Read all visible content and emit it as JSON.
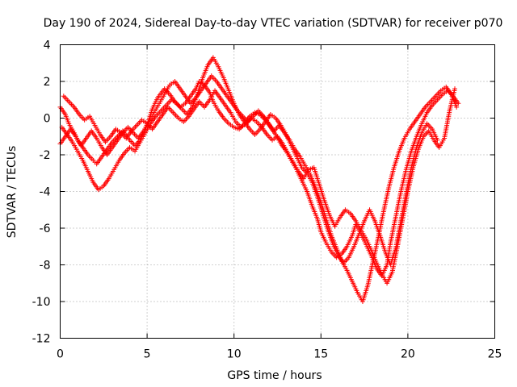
{
  "chart_data": {
    "type": "scatter",
    "title": "Day 190 of 2024, Sidereal Day-to-day VTEC variation (SDTVAR) for receiver p070",
    "xlabel": "GPS time / hours",
    "ylabel": "SDTVAR / TECUs",
    "xlim": [
      0,
      25
    ],
    "ylim": [
      -12,
      4
    ],
    "xticks": [
      0,
      5,
      10,
      15,
      20,
      25
    ],
    "yticks": [
      -12,
      -10,
      -8,
      -6,
      -4,
      -2,
      0,
      2,
      4
    ],
    "grid": true,
    "marker": "+",
    "color": "#ff0000",
    "series": [
      {
        "x": [
          0.0,
          0.3,
          0.5,
          0.8,
          1.0,
          1.3,
          1.6,
          1.9,
          2.1,
          2.4,
          2.7,
          3.0,
          3.3,
          3.6,
          4.0,
          4.3,
          4.6,
          4.9,
          5.1,
          5.3,
          5.6,
          6.0,
          6.3,
          6.6,
          6.9,
          7.2,
          7.5,
          7.8,
          8.0,
          8.3,
          8.6,
          8.8,
          9.1,
          9.4,
          9.7,
          10.0,
          10.3,
          10.6,
          10.9,
          11.2,
          11.5,
          11.8,
          12.1,
          12.4,
          12.7,
          13.0,
          13.3,
          13.6,
          13.9,
          14.2,
          14.5,
          14.8,
          15.0,
          15.3,
          15.6,
          15.9,
          16.2,
          16.5,
          16.8,
          17.0,
          17.3,
          17.6,
          17.9,
          18.2,
          18.5,
          18.8,
          19.0,
          19.3,
          19.6,
          19.9,
          20.2,
          20.5,
          20.8,
          21.1,
          21.4,
          21.7,
          22.0,
          22.3,
          22.6,
          22.9
        ],
        "y": [
          0.6,
          0.2,
          -0.3,
          -0.8,
          -1.2,
          -1.6,
          -2.0,
          -2.3,
          -2.5,
          -2.1,
          -1.7,
          -1.3,
          -1.0,
          -0.7,
          -1.2,
          -1.5,
          -1.2,
          -0.6,
          -0.1,
          0.5,
          1.1,
          1.6,
          1.3,
          0.9,
          0.6,
          0.8,
          1.2,
          1.6,
          2.0,
          1.8,
          1.4,
          0.9,
          0.4,
          0.0,
          -0.3,
          -0.5,
          -0.6,
          -0.3,
          0.1,
          0.3,
          0.2,
          -0.1,
          -0.5,
          -0.9,
          -1.4,
          -1.8,
          -2.3,
          -2.8,
          -3.4,
          -4.0,
          -4.8,
          -5.5,
          -6.2,
          -6.8,
          -7.3,
          -7.6,
          -7.4,
          -7.0,
          -6.4,
          -5.8,
          -6.3,
          -6.9,
          -7.5,
          -8.2,
          -8.6,
          -8.0,
          -6.8,
          -5.4,
          -4.0,
          -2.8,
          -1.8,
          -1.0,
          -0.3,
          0.3,
          0.7,
          1.0,
          1.3,
          1.5,
          1.2,
          0.8
        ]
      },
      {
        "x": [
          0.1,
          0.4,
          0.7,
          1.0,
          1.3,
          1.6,
          1.9,
          2.2,
          2.5,
          2.8,
          3.1,
          3.4,
          3.7,
          4.0,
          4.3,
          4.6,
          4.9,
          5.2,
          5.5,
          5.8,
          6.1,
          6.4,
          6.7,
          7.0,
          7.3,
          7.6,
          7.9,
          8.2,
          8.5,
          8.8,
          9.1,
          9.4,
          9.7,
          10.0,
          10.3,
          10.6,
          10.9,
          11.2,
          11.5,
          11.8,
          12.1,
          12.4,
          12.7,
          13.0,
          13.3,
          13.6,
          13.9,
          14.2,
          14.5,
          14.8,
          15.1,
          15.4,
          15.7,
          16.0,
          16.3,
          16.6,
          16.9,
          17.2,
          17.5,
          17.8,
          18.1,
          18.4,
          18.7,
          19.0,
          19.3,
          19.6,
          19.9,
          20.2,
          20.5,
          20.8,
          21.1,
          21.4,
          21.7
        ],
        "y": [
          -0.5,
          -0.9,
          -1.3,
          -1.8,
          -2.3,
          -2.9,
          -3.5,
          -3.9,
          -3.7,
          -3.3,
          -2.8,
          -2.3,
          -1.9,
          -1.6,
          -1.8,
          -1.3,
          -0.8,
          -0.3,
          0.1,
          0.4,
          0.7,
          1.0,
          0.8,
          0.5,
          0.2,
          0.6,
          1.3,
          2.2,
          2.9,
          3.3,
          2.8,
          2.2,
          1.5,
          0.8,
          0.2,
          -0.2,
          -0.6,
          -0.9,
          -0.6,
          -0.2,
          0.2,
          0.0,
          -0.4,
          -0.9,
          -1.5,
          -2.1,
          -2.7,
          -3.0,
          -3.5,
          -4.3,
          -5.2,
          -6.1,
          -6.9,
          -7.5,
          -7.9,
          -7.6,
          -7.0,
          -6.3,
          -5.6,
          -5.0,
          -5.6,
          -6.4,
          -7.3,
          -8.0,
          -7.1,
          -5.6,
          -4.1,
          -2.7,
          -1.6,
          -0.8,
          -0.3,
          -0.6,
          -1.2
        ]
      },
      {
        "x": [
          0.2,
          0.5,
          0.8,
          1.1,
          1.4,
          1.7,
          2.0,
          2.3,
          2.6,
          2.9,
          3.2,
          3.5,
          3.8,
          4.1,
          4.4,
          4.7,
          5.0,
          5.3,
          5.6,
          5.9,
          6.2,
          6.5,
          6.8,
          7.1,
          7.4,
          7.7,
          8.0,
          8.3,
          8.6,
          8.9,
          9.2,
          9.5,
          9.8,
          10.1,
          10.4,
          10.7,
          11.0,
          11.3,
          11.6,
          11.9,
          12.2,
          12.5,
          12.8,
          13.1,
          13.4,
          13.7,
          14.0,
          14.3,
          14.6,
          14.9,
          15.2,
          15.5,
          15.8,
          16.1,
          16.4,
          16.7,
          17.0,
          17.3,
          17.6,
          17.9,
          18.2,
          18.5,
          18.8,
          19.1,
          19.4,
          19.7,
          20.0,
          20.3,
          20.6,
          20.9,
          21.2,
          21.5,
          21.8,
          22.1,
          22.4,
          22.7
        ],
        "y": [
          1.2,
          0.9,
          0.6,
          0.2,
          -0.1,
          0.1,
          -0.4,
          -0.9,
          -1.3,
          -1.0,
          -0.6,
          -0.8,
          -1.1,
          -0.7,
          -0.4,
          -0.1,
          -0.3,
          -0.6,
          -0.2,
          0.2,
          0.6,
          0.3,
          0.0,
          -0.2,
          0.1,
          0.5,
          0.9,
          0.6,
          1.0,
          1.5,
          1.1,
          0.7,
          0.3,
          -0.2,
          -0.5,
          -0.3,
          0.0,
          -0.2,
          -0.5,
          -0.9,
          -1.2,
          -1.0,
          -1.4,
          -1.9,
          -2.4,
          -2.9,
          -3.3,
          -2.8,
          -2.7,
          -3.6,
          -4.5,
          -5.3,
          -5.9,
          -5.4,
          -5.0,
          -5.2,
          -5.6,
          -6.1,
          -6.6,
          -7.2,
          -7.9,
          -8.5,
          -9.0,
          -8.4,
          -7.0,
          -5.5,
          -4.0,
          -2.7,
          -1.7,
          -1.0,
          -0.7,
          -1.2,
          -1.6,
          -1.1,
          0.4,
          1.6
        ]
      },
      {
        "x": [
          0.0,
          0.3,
          0.6,
          0.9,
          1.2,
          1.5,
          1.8,
          2.1,
          2.4,
          2.7,
          3.0,
          3.3,
          3.6,
          3.9,
          4.2,
          4.5,
          4.8,
          5.1,
          5.4,
          5.7,
          6.0,
          6.3,
          6.6,
          6.9,
          7.2,
          7.5,
          7.8,
          8.1,
          8.4,
          8.7,
          9.0,
          9.3,
          9.6,
          9.9,
          10.2,
          10.5,
          10.8,
          11.1,
          11.4,
          11.7,
          12.0,
          12.3,
          12.6,
          12.9,
          13.2,
          13.5,
          13.8,
          14.1,
          14.4,
          14.7,
          15.0,
          15.3,
          15.6,
          15.9,
          16.2,
          16.5,
          16.8,
          17.1,
          17.4,
          17.7,
          18.0,
          18.3,
          18.6,
          18.9,
          19.2,
          19.5,
          19.8,
          20.1,
          20.4,
          20.7,
          21.0,
          21.3,
          21.6,
          21.9,
          22.2,
          22.5,
          22.8
        ],
        "y": [
          -1.4,
          -1.0,
          -0.6,
          -1.0,
          -1.5,
          -1.1,
          -0.7,
          -1.1,
          -1.6,
          -2.0,
          -1.6,
          -1.2,
          -0.8,
          -0.5,
          -0.8,
          -1.1,
          -0.7,
          -0.2,
          0.3,
          0.8,
          1.3,
          1.8,
          2.0,
          1.6,
          1.2,
          0.8,
          1.1,
          1.5,
          1.9,
          2.3,
          2.0,
          1.6,
          1.2,
          0.8,
          0.4,
          0.1,
          -0.2,
          0.1,
          0.4,
          0.1,
          -0.3,
          -0.7,
          -0.4,
          -0.8,
          -1.2,
          -1.7,
          -2.1,
          -2.6,
          -3.1,
          -3.8,
          -4.6,
          -5.5,
          -6.4,
          -7.1,
          -7.8,
          -8.3,
          -8.9,
          -9.5,
          -10.0,
          -9.1,
          -7.8,
          -6.5,
          -5.1,
          -3.8,
          -2.7,
          -1.8,
          -1.1,
          -0.6,
          -0.2,
          0.2,
          0.6,
          0.9,
          1.2,
          1.5,
          1.7,
          1.3,
          0.6
        ]
      }
    ]
  }
}
